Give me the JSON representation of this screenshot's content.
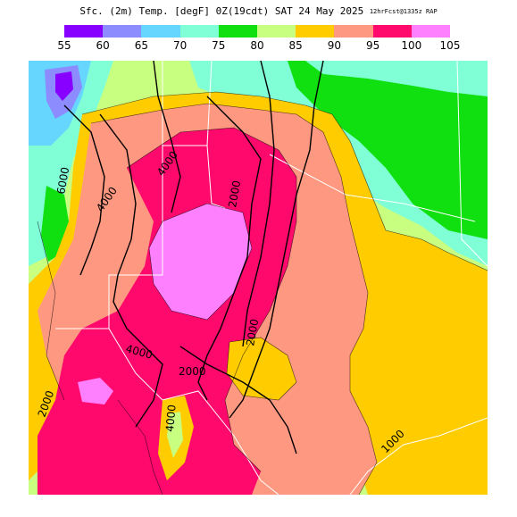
{
  "header": {
    "title_main": "Sfc. (2m) Temp. [degF] 0Z(19cdt) SAT 24 May 2025",
    "title_run": "12hrFcst@1335z RAP"
  },
  "legend": {
    "bins": [
      {
        "from": 55,
        "color": "#8800ff"
      },
      {
        "from": 60,
        "color": "#8c8cff"
      },
      {
        "from": 65,
        "color": "#66d6ff"
      },
      {
        "from": 70,
        "color": "#80ffd6"
      },
      {
        "from": 75,
        "color": "#10e010"
      },
      {
        "from": 80,
        "color": "#c8ff80"
      },
      {
        "from": 85,
        "color": "#ffcc00"
      },
      {
        "from": 90,
        "color": "#ff9880"
      },
      {
        "from": 95,
        "color": "#ff0a6c"
      },
      {
        "from": 100,
        "color": "#ff80ff"
      }
    ],
    "tick_labels": [
      "55",
      "60",
      "65",
      "70",
      "75",
      "80",
      "85",
      "90",
      "95",
      "100",
      "105"
    ]
  },
  "map": {
    "contour_labels": {
      "c6000": "6000",
      "c4000a": "4000",
      "c4000b": "4000",
      "c2000a": "2000",
      "c2000b": "2000",
      "c2000c": "2000",
      "c4000c": "4000",
      "c4000d": "4000",
      "c2000d": "2000",
      "c1000": "1000"
    }
  }
}
